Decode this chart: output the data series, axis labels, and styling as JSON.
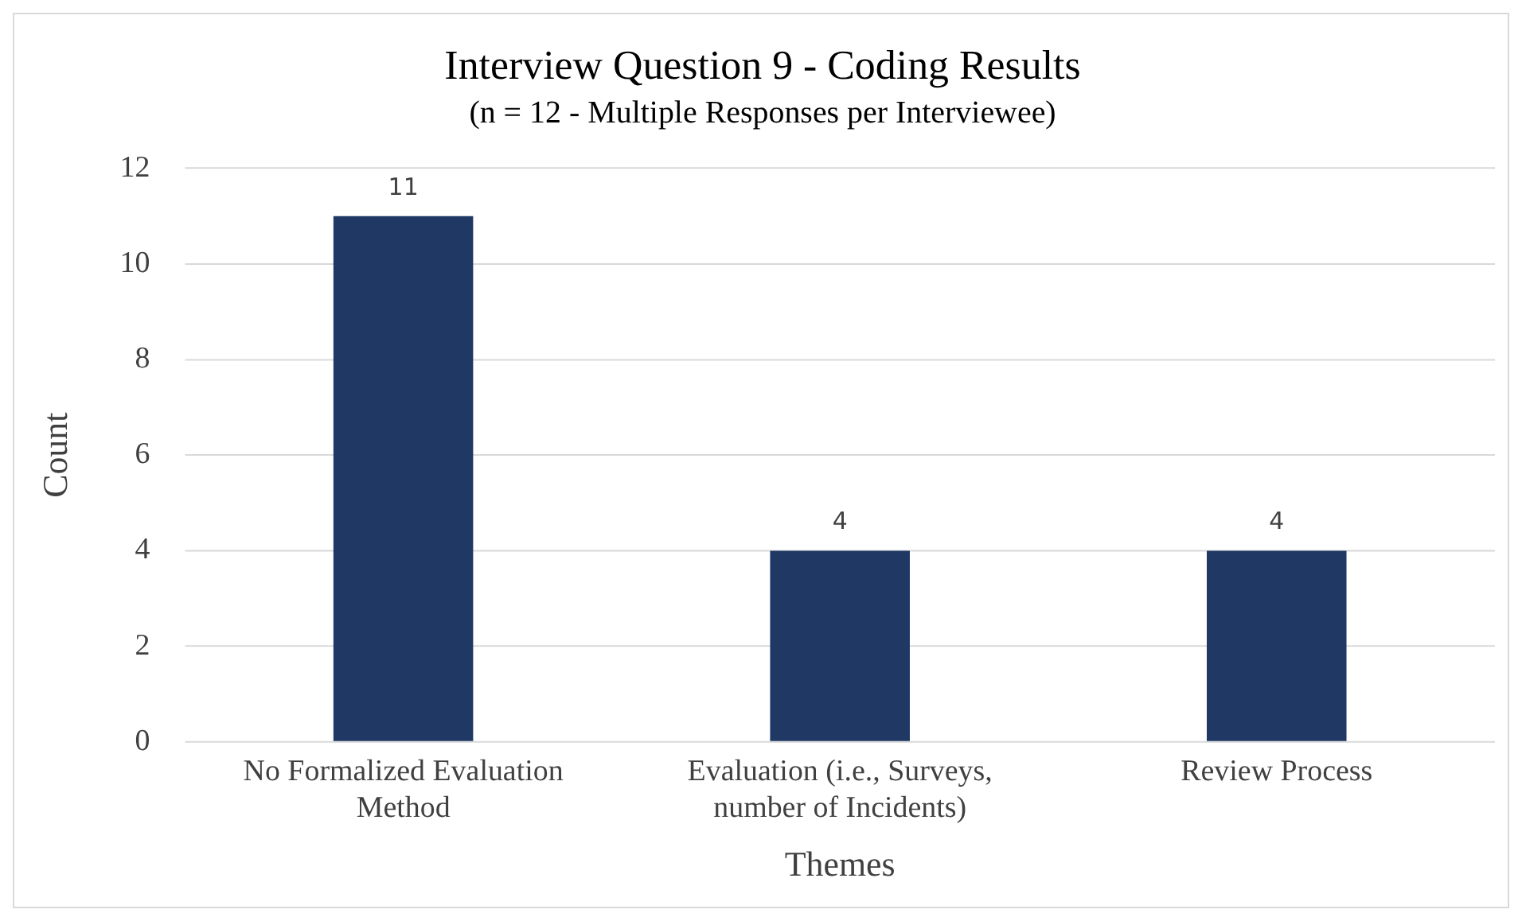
{
  "chart_data": {
    "type": "bar",
    "title": "Interview Question 9 - Coding Results",
    "subtitle": "(n = 12 - Multiple Responses per Interviewee)",
    "xlabel": "Themes",
    "ylabel": "Count",
    "categories": [
      "No Formalized Evaluation Method",
      "Evaluation (i.e., Surveys, number of Incidents)",
      "Review Process"
    ],
    "values": [
      11,
      4,
      4
    ],
    "color": "#1f3864",
    "ylim": [
      0,
      12
    ],
    "yticks": [
      0,
      2,
      4,
      6,
      8,
      10,
      12
    ],
    "grid": "y",
    "legend": false,
    "data_labels": true
  }
}
